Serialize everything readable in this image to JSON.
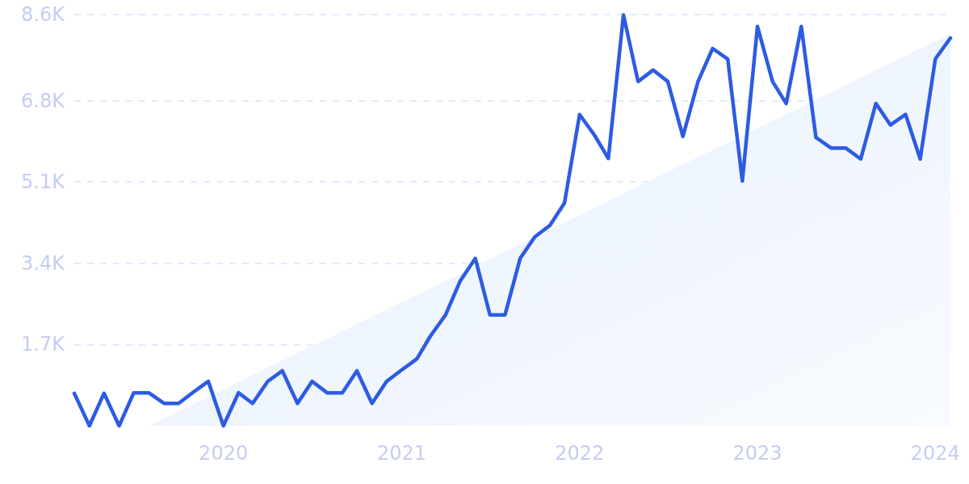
{
  "chart_data": {
    "type": "line",
    "x": [
      "2019-03",
      "2019-04",
      "2019-05",
      "2019-06",
      "2019-07",
      "2019-08",
      "2019-09",
      "2019-10",
      "2019-11",
      "2019-12",
      "2020-01",
      "2020-02",
      "2020-03",
      "2020-04",
      "2020-05",
      "2020-06",
      "2020-07",
      "2020-08",
      "2020-09",
      "2020-10",
      "2020-11",
      "2020-12",
      "2021-01",
      "2021-02",
      "2021-03",
      "2021-04",
      "2021-05",
      "2021-06",
      "2021-07",
      "2021-08",
      "2021-09",
      "2021-10",
      "2021-11",
      "2021-12",
      "2022-01",
      "2022-02",
      "2022-03",
      "2022-04",
      "2022-05",
      "2022-06",
      "2022-07",
      "2022-08",
      "2022-09",
      "2022-10",
      "2022-11",
      "2022-12",
      "2023-01",
      "2023-02",
      "2023-03",
      "2023-04",
      "2023-05",
      "2023-06",
      "2023-07",
      "2023-08",
      "2023-09",
      "2023-10",
      "2023-11",
      "2023-12",
      "2024-01",
      "2024-02"
    ],
    "series": [
      {
        "type": "area",
        "color": "#e6effc",
        "x": [
          "2019-08",
          "2024-02"
        ],
        "values": [
          0,
          8200
        ]
      },
      {
        "color": "#2d5be3",
        "values": [
          680,
          0,
          680,
          0,
          690,
          690,
          470,
          470,
          710,
          930,
          0,
          690,
          470,
          930,
          1150,
          470,
          930,
          690,
          690,
          1150,
          470,
          930,
          1170,
          1400,
          1880,
          2320,
          3030,
          3500,
          2320,
          2320,
          3500,
          3950,
          4190,
          4660,
          6510,
          6070,
          5590,
          8590,
          7200,
          7440,
          7200,
          6050,
          7200,
          7890,
          7670,
          5120,
          8350,
          7200,
          6740,
          8350,
          6030,
          5810,
          5810,
          5580,
          6740,
          6290,
          6510,
          5580,
          7670,
          8110
        ]
      }
    ],
    "xlim": [
      "2019-03",
      "2024-02"
    ],
    "xticks": [
      {
        "value": "2020-01",
        "label": "2020"
      },
      {
        "value": "2021-01",
        "label": "2021"
      },
      {
        "value": "2022-01",
        "label": "2022"
      },
      {
        "value": "2023-01",
        "label": "2023"
      },
      {
        "value": "2024-01",
        "label": "2024"
      }
    ],
    "ylim": [
      0,
      8600
    ],
    "yticks": [
      {
        "value": 1700,
        "label": "1.7K"
      },
      {
        "value": 3400,
        "label": "3.4K"
      },
      {
        "value": 5100,
        "label": "5.1K"
      },
      {
        "value": 6800,
        "label": "6.8K"
      },
      {
        "value": 8600,
        "label": "8.6K"
      }
    ],
    "grid": "y",
    "marker": "none",
    "line_style": "solid"
  }
}
